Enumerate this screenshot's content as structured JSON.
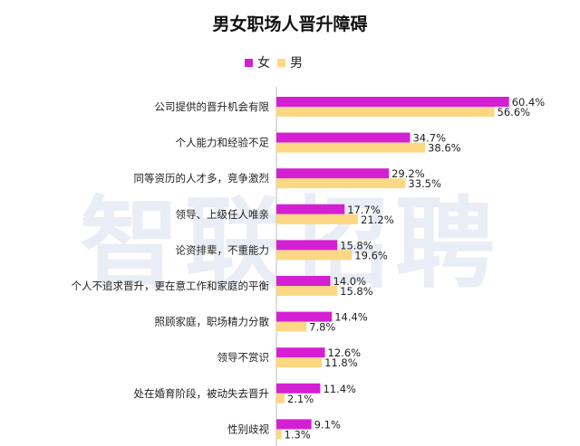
{
  "watermark": "智联招聘",
  "chart_data": {
    "type": "bar",
    "orientation": "horizontal",
    "title": "男女职场人晋升障碍",
    "categories": [
      "公司提供的晋升机会有限",
      "个人能力和经验不足",
      "同等资历的人才多，竞争激烈",
      "领导、上级任人唯亲",
      "论资排辈，不重能力",
      "个人不追求晋升，更在意工作和家庭的平衡",
      "照顾家庭，职场精力分散",
      "领导不赏识",
      "处在婚育阶段，被动失去晋升",
      "性别歧视"
    ],
    "series": [
      {
        "name": "女",
        "color": "#d51fd3",
        "values": [
          60.4,
          34.7,
          29.2,
          17.7,
          15.8,
          14.0,
          14.4,
          12.6,
          11.4,
          9.1
        ]
      },
      {
        "name": "男",
        "color": "#fcd784",
        "values": [
          56.6,
          38.6,
          33.5,
          21.2,
          19.6,
          15.8,
          7.8,
          11.8,
          2.1,
          1.3
        ]
      }
    ],
    "value_suffix": "%",
    "legend_position": "top",
    "grid": false,
    "xlim": [
      0,
      70
    ]
  }
}
